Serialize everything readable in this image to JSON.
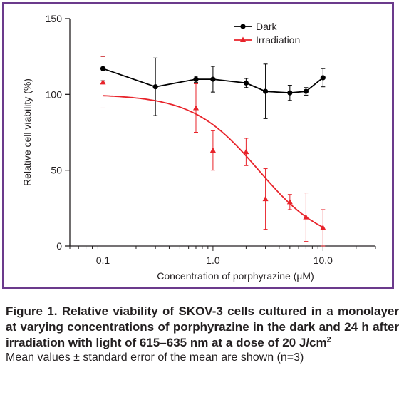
{
  "chart_data": {
    "type": "line",
    "xlabel": "Concentration of porphyrazine (µM)",
    "ylabel": "Relative cell viability (%)",
    "xscale": "log",
    "xlim": [
      0.05,
      30
    ],
    "ylim": [
      0,
      150
    ],
    "x_ticks": [
      0.1,
      1.0,
      10.0
    ],
    "x_tick_labels": [
      "0.1",
      "1.0",
      "10.0"
    ],
    "y_ticks": [
      0,
      50,
      100,
      150
    ],
    "y_tick_labels": [
      "0",
      "50",
      "100",
      "150"
    ],
    "legend_position": "top-right",
    "grid": false,
    "series": [
      {
        "name": "Dark",
        "color": "#000000",
        "marker": "circle",
        "style": "connected",
        "x": [
          0.1,
          0.3,
          0.7,
          1.0,
          2.0,
          3.0,
          5.0,
          7.0,
          10.0
        ],
        "y": [
          117,
          105,
          110,
          110,
          107.5,
          102,
          101,
          102,
          111
        ],
        "err": [
          8,
          19,
          2,
          8.5,
          3,
          18,
          5,
          2.5,
          6
        ]
      },
      {
        "name": "Irradiation",
        "color": "#e8232a",
        "marker": "triangle",
        "style": "fitted-curve",
        "x": [
          0.1,
          0.7,
          1.0,
          2.0,
          3.0,
          5.0,
          7.0,
          10.0
        ],
        "y": [
          108,
          91,
          63,
          62,
          31,
          29,
          19,
          12
        ],
        "err": [
          17,
          16,
          13,
          9,
          20,
          5,
          16,
          12
        ],
        "fit": {
          "model": "logistic",
          "top": 100,
          "bottom": 0,
          "ic50": 2.6,
          "hill": 1.45
        }
      }
    ]
  },
  "caption": {
    "title_bold": "Figure 1. Relative viability of SKOV-3 cells cultured in a monolayer at varying concentrations of porphyrazine in the dark and 24 h after irradiation with light of 615–635 nm at a dose of 20 J/cm",
    "title_sup": "2",
    "note": "Mean values ± standard error of the mean are shown (n=3)"
  }
}
